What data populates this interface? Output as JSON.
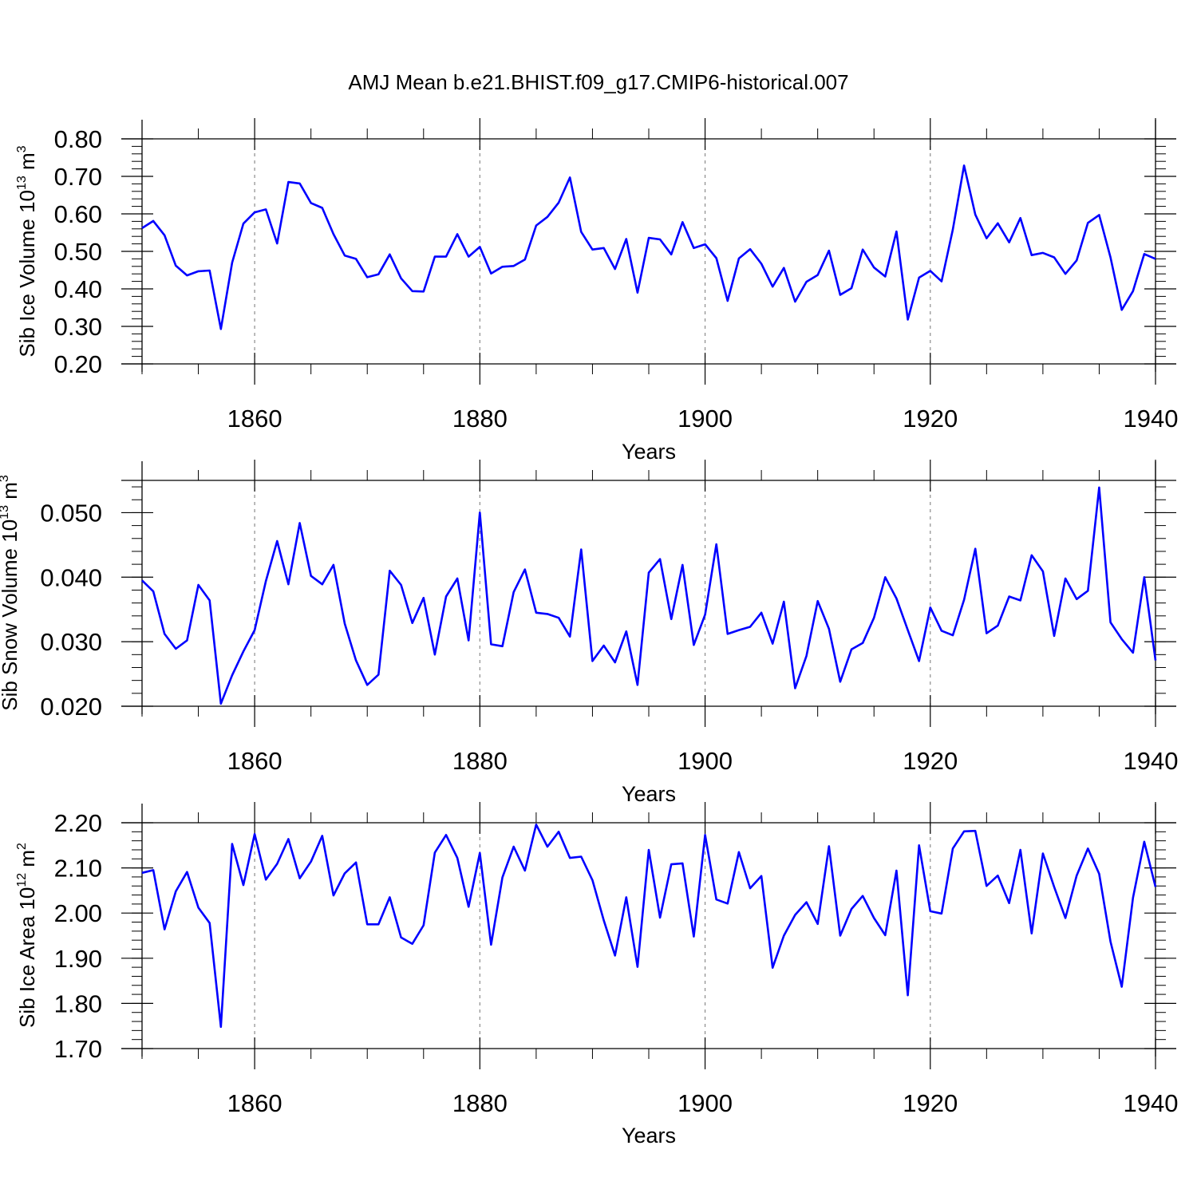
{
  "title": "AMJ Mean b.e21.BHIST.f09_g17.CMIP6-historical.007",
  "style": {
    "line_color": "#0000ff",
    "grid_color": "#8c8c8c",
    "axis_color": "#000000"
  },
  "chart_data": [
    {
      "type": "line",
      "ylabel_main": "Sib Ice Volume 10",
      "ylabel_exp": "13",
      "ylabel_unit": " m",
      "ylabel_unit_exp": "3",
      "xlabel": "Years",
      "xlim": [
        1850,
        1940
      ],
      "ylim": [
        0.2,
        0.8
      ],
      "y_ticks": [
        0.2,
        0.3,
        0.4,
        0.5,
        0.6,
        0.7,
        0.8
      ],
      "y_tick_labels": [
        "0.20",
        "0.30",
        "0.40",
        "0.50",
        "0.60",
        "0.70",
        "0.80"
      ],
      "x_ticks": [
        1860,
        1880,
        1900,
        1920,
        1940
      ],
      "x_tick_labels": [
        "1860",
        "1880",
        "1900",
        "1920",
        "1940"
      ],
      "grid_x": [
        1860,
        1880,
        1900,
        1920
      ],
      "x_start": 1850,
      "values": [
        0.562,
        0.581,
        0.543,
        0.462,
        0.436,
        0.447,
        0.449,
        0.293,
        0.47,
        0.574,
        0.604,
        0.612,
        0.521,
        0.685,
        0.681,
        0.629,
        0.616,
        0.546,
        0.489,
        0.48,
        0.431,
        0.439,
        0.492,
        0.428,
        0.394,
        0.393,
        0.486,
        0.486,
        0.546,
        0.486,
        0.512,
        0.441,
        0.459,
        0.461,
        0.478,
        0.569,
        0.592,
        0.63,
        0.697,
        0.552,
        0.505,
        0.509,
        0.453,
        0.533,
        0.39,
        0.536,
        0.532,
        0.492,
        0.578,
        0.509,
        0.519,
        0.482,
        0.368,
        0.481,
        0.506,
        0.467,
        0.406,
        0.456,
        0.366,
        0.419,
        0.437,
        0.502,
        0.384,
        0.402,
        0.505,
        0.457,
        0.433,
        0.553,
        0.318,
        0.43,
        0.448,
        0.42,
        0.558,
        0.729,
        0.598,
        0.535,
        0.575,
        0.524,
        0.589,
        0.49,
        0.496,
        0.484,
        0.44,
        0.476,
        0.576,
        0.597,
        0.484,
        0.344,
        0.394,
        0.493,
        0.48
      ]
    },
    {
      "type": "line",
      "ylabel_main": "Sib Snow Volume 10",
      "ylabel_exp": "13",
      "ylabel_unit": " m",
      "ylabel_unit_exp": "3",
      "xlabel": "Years",
      "xlim": [
        1850,
        1940
      ],
      "ylim": [
        0.02,
        0.055
      ],
      "y_ticks": [
        0.02,
        0.03,
        0.04,
        0.05
      ],
      "y_tick_labels": [
        "0.020",
        "0.030",
        "0.040",
        "0.050"
      ],
      "x_ticks": [
        1860,
        1880,
        1900,
        1920,
        1940
      ],
      "x_tick_labels": [
        "1860",
        "1880",
        "1900",
        "1920",
        "1940"
      ],
      "grid_x": [
        1860,
        1880,
        1900,
        1920
      ],
      "x_start": 1850,
      "values": [
        0.0395,
        0.0378,
        0.0312,
        0.0289,
        0.0302,
        0.0388,
        0.0364,
        0.0204,
        0.0248,
        0.0285,
        0.0318,
        0.0394,
        0.0456,
        0.0389,
        0.0484,
        0.0402,
        0.0389,
        0.0419,
        0.0328,
        0.0271,
        0.0233,
        0.0249,
        0.041,
        0.0388,
        0.0329,
        0.0368,
        0.028,
        0.037,
        0.0398,
        0.0302,
        0.05,
        0.0296,
        0.0293,
        0.0377,
        0.0412,
        0.0345,
        0.0343,
        0.0337,
        0.0308,
        0.0443,
        0.027,
        0.0294,
        0.0268,
        0.0316,
        0.0233,
        0.0407,
        0.0428,
        0.0335,
        0.0419,
        0.0295,
        0.0342,
        0.0451,
        0.0312,
        0.0318,
        0.0323,
        0.0345,
        0.0297,
        0.0362,
        0.0228,
        0.0278,
        0.0363,
        0.032,
        0.0238,
        0.0288,
        0.0298,
        0.0337,
        0.04,
        0.0367,
        0.0318,
        0.027,
        0.0353,
        0.0317,
        0.031,
        0.0365,
        0.0444,
        0.0313,
        0.0325,
        0.037,
        0.0364,
        0.0434,
        0.0409,
        0.0309,
        0.0398,
        0.0366,
        0.0379,
        0.0539,
        0.033,
        0.0304,
        0.0283,
        0.04,
        0.0271
      ]
    },
    {
      "type": "line",
      "ylabel_main": "Sib Ice Area 10",
      "ylabel_exp": "12",
      "ylabel_unit": " m",
      "ylabel_unit_exp": "2",
      "xlabel": "Years",
      "xlim": [
        1850,
        1940
      ],
      "ylim": [
        1.7,
        2.2
      ],
      "y_ticks": [
        1.7,
        1.8,
        1.9,
        2.0,
        2.1,
        2.2
      ],
      "y_tick_labels": [
        "1.70",
        "1.80",
        "1.90",
        "2.00",
        "2.10",
        "2.20"
      ],
      "x_ticks": [
        1860,
        1880,
        1900,
        1920,
        1940
      ],
      "x_tick_labels": [
        "1860",
        "1880",
        "1900",
        "1920",
        "1940"
      ],
      "grid_x": [
        1860,
        1880,
        1900,
        1920
      ],
      "x_start": 1850,
      "values": [
        2.089,
        2.095,
        1.964,
        2.048,
        2.091,
        2.012,
        1.978,
        1.748,
        2.153,
        2.062,
        2.175,
        2.074,
        2.109,
        2.164,
        2.077,
        2.114,
        2.171,
        2.039,
        2.088,
        2.112,
        1.975,
        1.975,
        2.035,
        1.946,
        1.932,
        1.973,
        2.134,
        2.173,
        2.122,
        2.014,
        2.133,
        1.93,
        2.079,
        2.147,
        2.094,
        2.196,
        2.147,
        2.18,
        2.122,
        2.125,
        2.073,
        1.984,
        1.906,
        2.035,
        1.881,
        2.14,
        1.99,
        2.108,
        2.11,
        1.948,
        2.173,
        2.03,
        2.021,
        2.135,
        2.055,
        2.082,
        1.879,
        1.95,
        1.996,
        2.024,
        1.976,
        2.148,
        1.95,
        2.009,
        2.038,
        1.989,
        1.951,
        2.094,
        1.818,
        2.15,
        2.004,
        1.999,
        2.143,
        2.181,
        2.182,
        2.06,
        2.083,
        2.022,
        2.14,
        1.955,
        2.132,
        2.058,
        1.989,
        2.083,
        2.143,
        2.087,
        1.937,
        1.837,
        2.034,
        2.158,
        2.058
      ]
    }
  ]
}
